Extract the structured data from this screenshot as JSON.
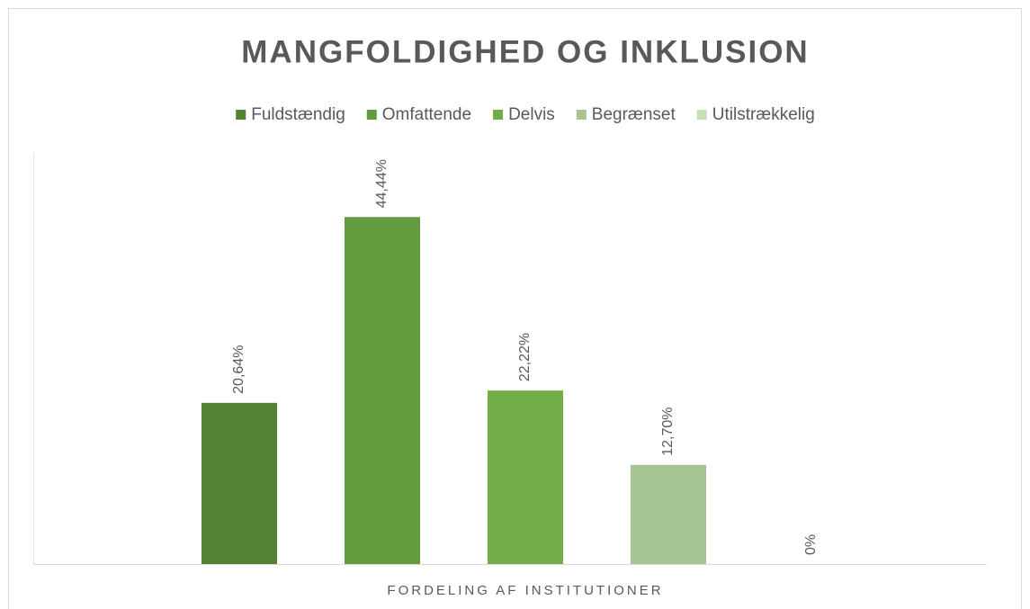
{
  "chart_data": {
    "type": "bar",
    "title": "MANGFOLDIGHED OG INKLUSION",
    "categories": [
      "FORDELING AF INSTITUTIONER"
    ],
    "series": [
      {
        "name": "Fuldstændig",
        "color": "#548235",
        "values": [
          20.64
        ],
        "value_labels": [
          "20,64%"
        ]
      },
      {
        "name": "Omfattende",
        "color": "#629b3e",
        "values": [
          44.44
        ],
        "value_labels": [
          "44,44%"
        ]
      },
      {
        "name": "Delvis",
        "color": "#70ad47",
        "values": [
          22.22
        ],
        "value_labels": [
          "22,22%"
        ]
      },
      {
        "name": "Begrænset",
        "color": "#a6c592",
        "values": [
          12.7
        ],
        "value_labels": [
          "12,70%"
        ]
      },
      {
        "name": "Utilstrækkelig",
        "color": "#c6e0b4",
        "values": [
          0
        ],
        "value_labels": [
          "0%"
        ]
      }
    ],
    "ylim": [
      0,
      50
    ],
    "legend": "top"
  }
}
